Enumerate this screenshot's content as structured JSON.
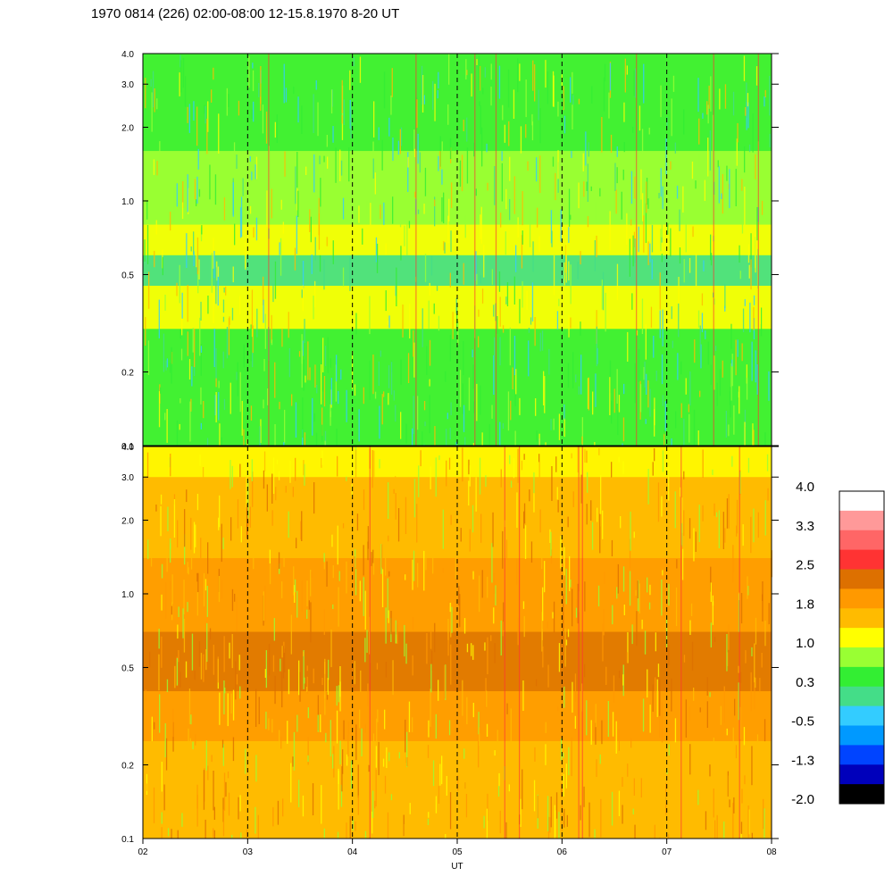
{
  "title": "1970 0814 (226) 02:00-08:00 12-15.8.1970  8-20 UT",
  "chart_data": [
    {
      "type": "heatmap",
      "panel": "top",
      "x": {
        "label": "",
        "ticks": [
          "02",
          "03",
          "04",
          "05",
          "06",
          "07",
          "08"
        ],
        "range": [
          2,
          8
        ]
      },
      "y": {
        "scale": "log",
        "range": [
          0.1,
          4.0
        ],
        "ticks": [
          {
            "value": 0.1,
            "label": "0.1"
          },
          {
            "value": 0.2,
            "label": "0.2"
          },
          {
            "value": 0.5,
            "label": "0.5"
          },
          {
            "value": 1.0,
            "label": "1.0"
          },
          {
            "value": 2.0,
            "label": "2.0"
          },
          {
            "value": 3.0,
            "label": "3.0"
          },
          {
            "value": 4.0,
            "label": "4.0"
          }
        ]
      },
      "dashed_gridlines_x": [
        3,
        4,
        5,
        6,
        7
      ],
      "dominant_levels": "0.3 to 1.0 (green-yellow), higher near 0.3-0.5"
    },
    {
      "type": "heatmap",
      "panel": "bottom",
      "x": {
        "label": "UT",
        "ticks": [
          "02",
          "03",
          "04",
          "05",
          "06",
          "07",
          "08"
        ],
        "range": [
          2,
          8
        ]
      },
      "y": {
        "scale": "log",
        "range": [
          0.1,
          4.0
        ],
        "ticks": [
          {
            "value": 0.1,
            "label": "0.1"
          },
          {
            "value": 0.2,
            "label": "0.2"
          },
          {
            "value": 0.5,
            "label": "0.5"
          },
          {
            "value": 1.0,
            "label": "1.0"
          },
          {
            "value": 2.0,
            "label": "2.0"
          },
          {
            "value": 3.0,
            "label": "3.0"
          },
          {
            "value": 4.0,
            "label": "4.0"
          }
        ]
      },
      "dashed_gridlines_x": [
        3,
        4,
        5,
        6,
        7
      ],
      "dominant_levels": "1.0 to 2.5 (yellow-orange), darkest band near 0.5"
    }
  ],
  "colorbar": {
    "labels": [
      "4.0",
      "3.3",
      "2.5",
      "1.8",
      "1.0",
      "0.3",
      "-0.5",
      "-1.3",
      "-2.0"
    ],
    "colors": [
      "#ffffff",
      "#ff9999",
      "#ff6666",
      "#ff3333",
      "#dd7000",
      "#ff9900",
      "#ffbb00",
      "#ffff00",
      "#99ff33",
      "#33ee33",
      "#44dd88",
      "#33ccff",
      "#0099ff",
      "#0044ff",
      "#0000bb",
      "#000000"
    ]
  }
}
